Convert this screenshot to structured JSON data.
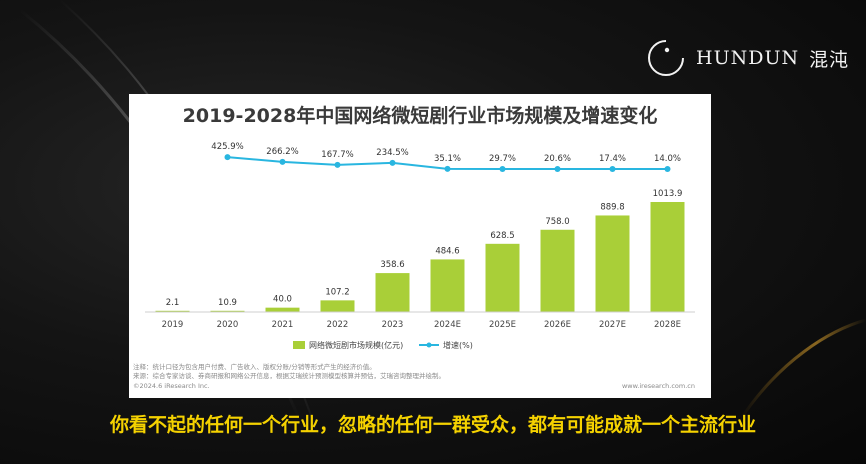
{
  "brand": {
    "name": "HUNDUN",
    "cn_name": "混沌"
  },
  "caption": "你看不起的任何一个行业，忽略的任何一群受众，都有可能成就一个主流行业",
  "colors": {
    "bar": "#a9cf38",
    "line": "#29b6e0",
    "caption": "#f5d200"
  },
  "chart_data": {
    "type": "bar",
    "title": "2019-2028年中国网络微短剧行业市场规模及增速变化",
    "categories": [
      "2019",
      "2020",
      "2021",
      "2022",
      "2023",
      "2024E",
      "2025E",
      "2026E",
      "2027E",
      "2028E"
    ],
    "series": [
      {
        "name": "网络微短剧市场规模(亿元)",
        "type": "bar",
        "values": [
          2.1,
          10.9,
          40.0,
          107.2,
          358.6,
          484.6,
          628.5,
          758.0,
          889.8,
          1013.9
        ],
        "labels": [
          "2.1",
          "10.9",
          "40.0",
          "107.2",
          "358.6",
          "484.6",
          "628.5",
          "758.0",
          "889.8",
          "1013.9"
        ]
      },
      {
        "name": "增速(%)",
        "type": "line",
        "values": [
          null,
          425.9,
          266.2,
          167.7,
          234.5,
          35.1,
          29.7,
          20.6,
          17.4,
          14.0
        ],
        "labels": [
          "",
          "425.9%",
          "266.2%",
          "167.7%",
          "234.5%",
          "35.1%",
          "29.7%",
          "20.6%",
          "17.4%",
          "14.0%"
        ]
      }
    ],
    "legend_position": "bottom",
    "notes": [
      "注释：统计口径为包含用户付费、广告收入、版权分账/分销等形式产生的经济价值。",
      "来源：综合专家访谈、券商研报和网络公开信息，根据艾瑞统计预测模型核算并预估，艾瑞咨询整理并绘制。"
    ],
    "footer_left": "©2024.6 iResearch Inc.",
    "footer_right": "www.iresearch.com.cn"
  }
}
